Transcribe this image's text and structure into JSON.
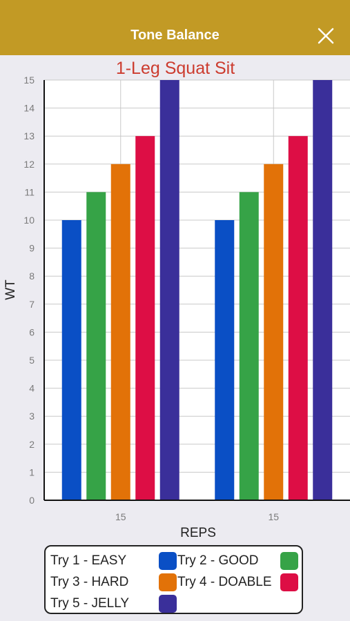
{
  "header": {
    "title": "Tone Balance",
    "background": "#c29a25",
    "close_icon": "close-x-icon"
  },
  "chart_data": {
    "type": "bar",
    "title": "1-Leg Squat Sit",
    "title_color": "#cc3b2e",
    "xlabel": "REPS",
    "ylabel": "WT",
    "ylim": [
      0,
      15
    ],
    "yticks": [
      "0",
      "1",
      "2",
      "3",
      "4",
      "5",
      "6",
      "7",
      "8",
      "9",
      "10",
      "11",
      "12",
      "13",
      "14",
      "15"
    ],
    "categories": [
      "15",
      "15"
    ],
    "grid": true,
    "series": [
      {
        "name": "Try 1 - EASY",
        "color": "#0a4fc5",
        "values": [
          10,
          10
        ]
      },
      {
        "name": "Try 2 - GOOD",
        "color": "#36a347",
        "values": [
          11,
          11
        ]
      },
      {
        "name": "Try 3 - HARD",
        "color": "#e27208",
        "values": [
          12,
          12
        ]
      },
      {
        "name": "Try 4 - DOABLE",
        "color": "#dd0e45",
        "values": [
          13,
          13
        ]
      },
      {
        "name": "Try 5 - JELLY",
        "color": "#3a2f9a",
        "values": [
          15,
          15
        ]
      }
    ],
    "legend_position": "bottom"
  }
}
